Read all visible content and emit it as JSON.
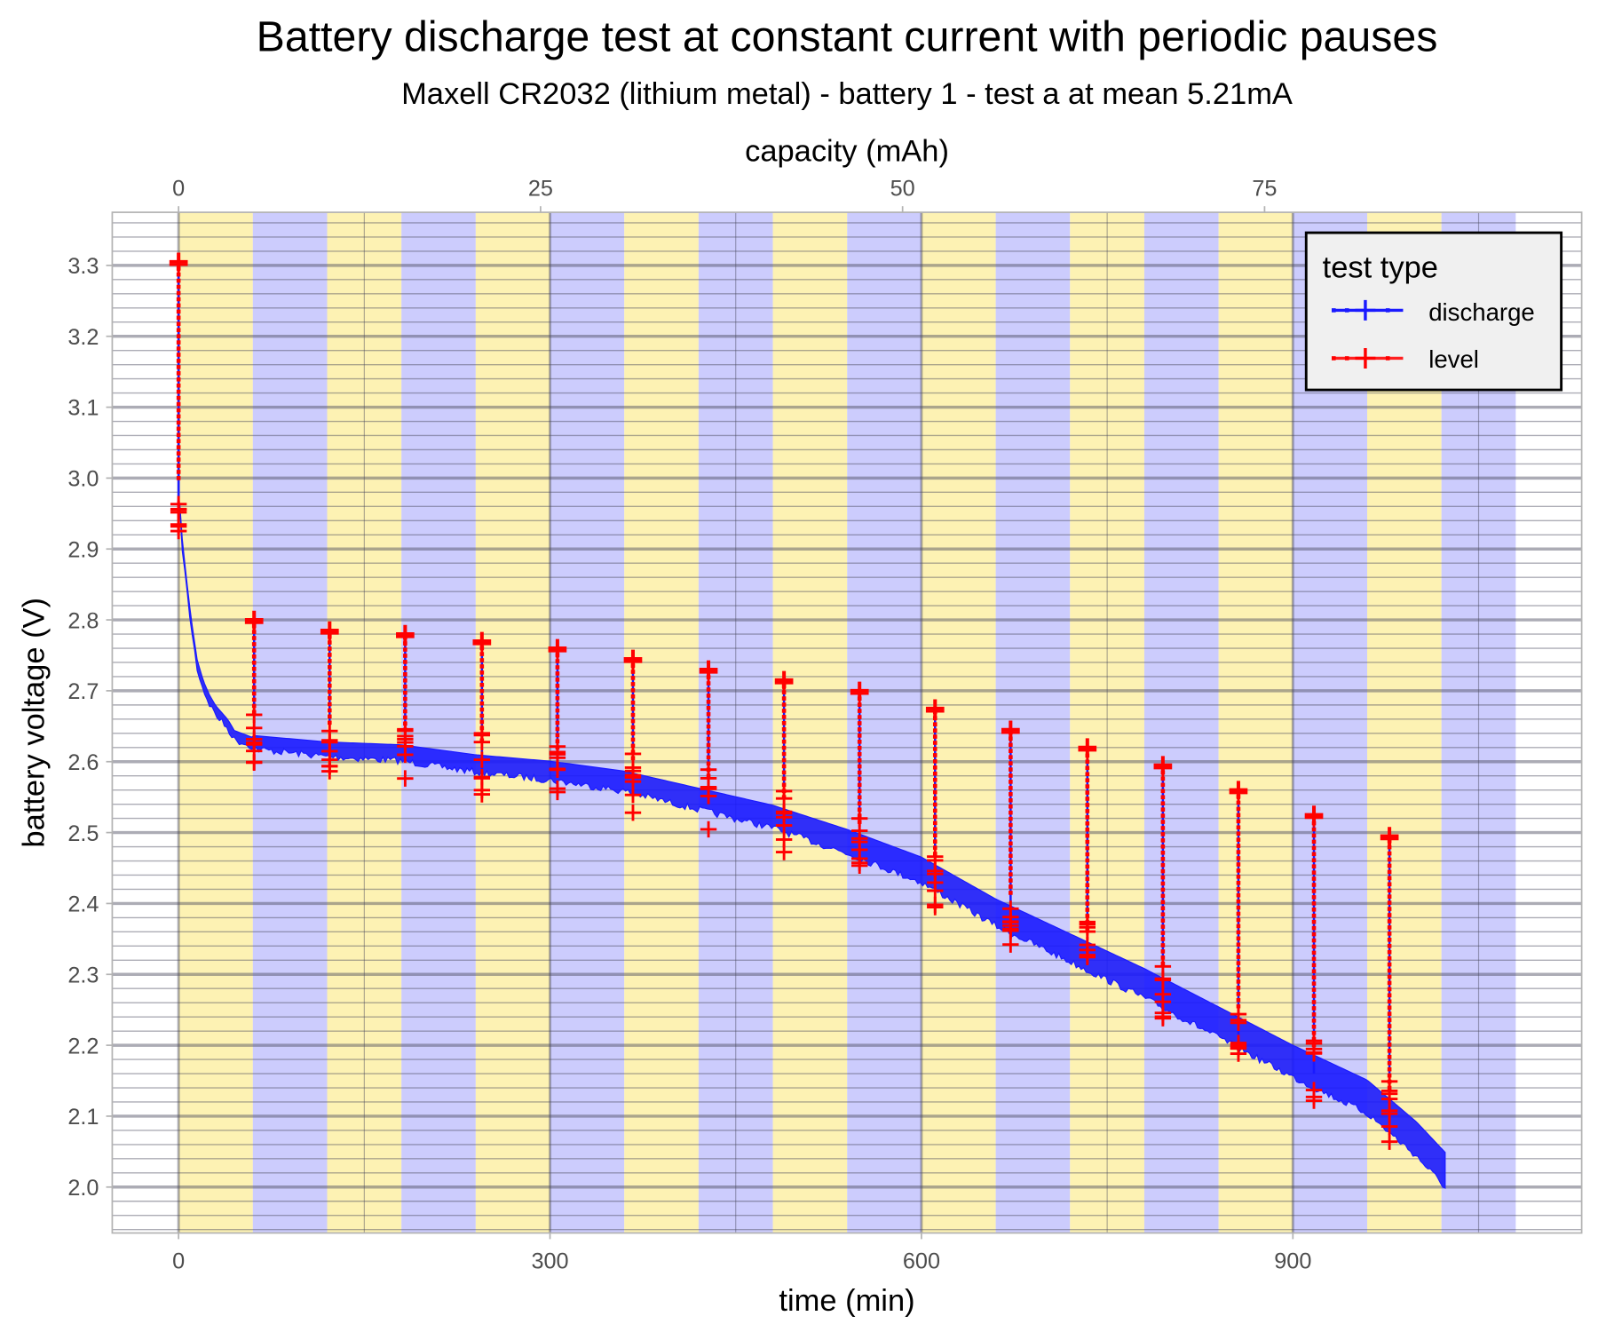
{
  "chart_data": {
    "type": "line",
    "title": "Battery discharge test at constant current with periodic pauses",
    "subtitle": "Maxell CR2032 (lithium metal) - battery 1 - test a at mean 5.21mA",
    "xlabel": "time (min)",
    "ylabel": "battery voltage (V)",
    "x2label": "capacity (mAh)",
    "xlim": [
      -54,
      1133
    ],
    "ylim": [
      1.935,
      3.375
    ],
    "xticks": [
      0,
      300,
      600,
      900
    ],
    "x2ticks": [
      0,
      25,
      50,
      75
    ],
    "yticks": [
      "2.0",
      "2.1",
      "2.2",
      "2.3",
      "2.4",
      "2.5",
      "2.6",
      "2.7",
      "2.8",
      "2.9",
      "3.0",
      "3.1",
      "3.2",
      "3.3"
    ],
    "grid": true,
    "background_bands": {
      "period_min": 60,
      "end_min": 1080,
      "colors": [
        "#fdf2b3",
        "#ccccfd"
      ]
    },
    "legend": {
      "title": "test type",
      "placement": "top-right",
      "entries": [
        {
          "label": "discharge",
          "color": "#1a1aff"
        },
        {
          "label": "level",
          "color": "#ff0000"
        }
      ]
    },
    "discharge": {
      "time": [
        0,
        1,
        3,
        6,
        10,
        15,
        20,
        25,
        30,
        35,
        40,
        45,
        60,
        120,
        180,
        240,
        300,
        360,
        420,
        480,
        540,
        600,
        660,
        720,
        780,
        840,
        900,
        960,
        1000,
        1024
      ],
      "voltage": [
        3.3,
        2.96,
        2.91,
        2.86,
        2.8,
        2.74,
        2.71,
        2.69,
        2.675,
        2.665,
        2.655,
        2.64,
        2.63,
        2.62,
        2.615,
        2.6,
        2.59,
        2.575,
        2.55,
        2.525,
        2.49,
        2.45,
        2.39,
        2.34,
        2.29,
        2.235,
        2.18,
        2.13,
        2.07,
        2.025
      ]
    },
    "level": [
      {
        "time": 0,
        "base": 2.97,
        "peak": 3.305
      },
      {
        "time": 61,
        "base": 2.64,
        "peak": 2.8
      },
      {
        "time": 122,
        "base": 2.625,
        "peak": 2.785
      },
      {
        "time": 183,
        "base": 2.615,
        "peak": 2.78
      },
      {
        "time": 245,
        "base": 2.6,
        "peak": 2.77
      },
      {
        "time": 306,
        "base": 2.59,
        "peak": 2.76
      },
      {
        "time": 367,
        "base": 2.575,
        "peak": 2.745
      },
      {
        "time": 428,
        "base": 2.55,
        "peak": 2.73
      },
      {
        "time": 489,
        "base": 2.52,
        "peak": 2.715
      },
      {
        "time": 550,
        "base": 2.485,
        "peak": 2.7
      },
      {
        "time": 611,
        "base": 2.44,
        "peak": 2.675
      },
      {
        "time": 672,
        "base": 2.385,
        "peak": 2.645
      },
      {
        "time": 734,
        "base": 2.335,
        "peak": 2.62
      },
      {
        "time": 795,
        "base": 2.285,
        "peak": 2.595
      },
      {
        "time": 856,
        "base": 2.225,
        "peak": 2.56
      },
      {
        "time": 917,
        "base": 2.17,
        "peak": 2.525
      },
      {
        "time": 978,
        "base": 2.11,
        "peak": 2.495
      }
    ],
    "mah_per_min": 0.0855
  }
}
